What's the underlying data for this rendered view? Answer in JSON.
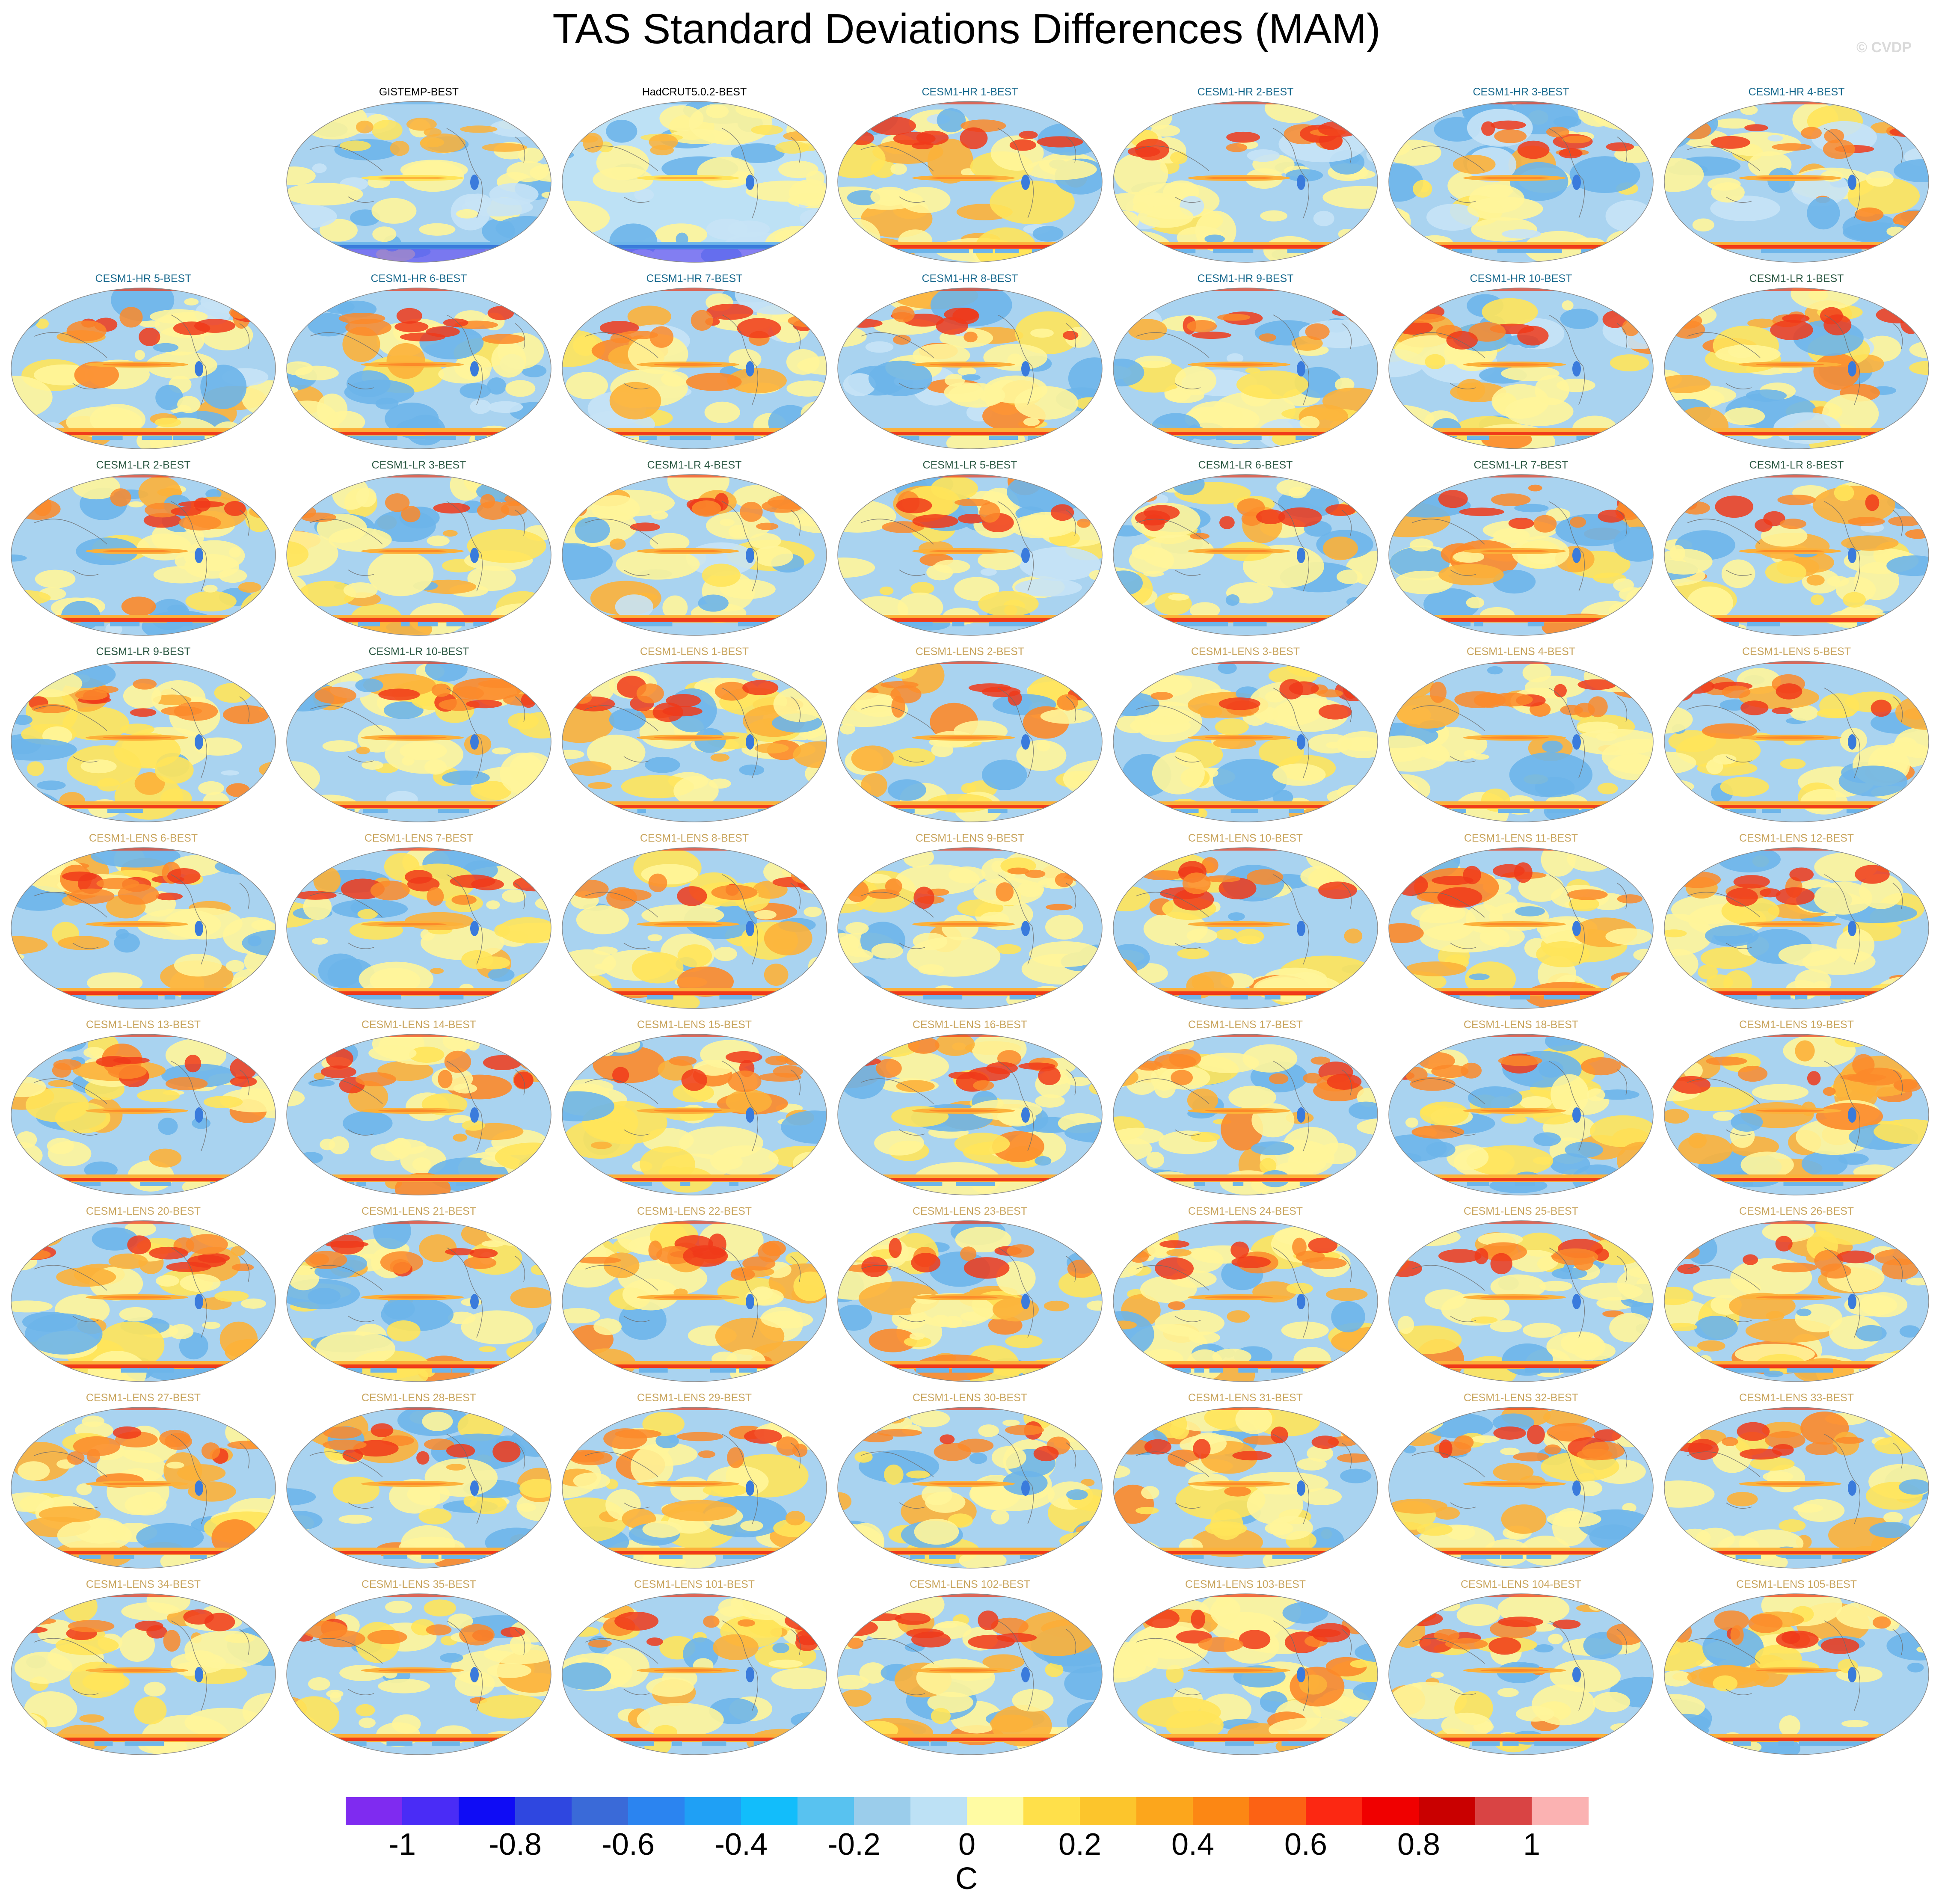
{
  "title": "TAS Standard Deviations Differences (MAM)",
  "copyright": "© CVDP",
  "label_colors": {
    "observations": "#000000",
    "CESM1-HR": "#1b6b8f",
    "CESM1-LR": "#2e5a45",
    "CESM1-LENS": "#c9a55e"
  },
  "panels": [
    {
      "label": "GISTEMP-BEST",
      "group": "observations"
    },
    {
      "label": "HadCRUT5.0.2-BEST",
      "group": "observations"
    },
    {
      "label": "CESM1-HR 1-BEST",
      "group": "CESM1-HR"
    },
    {
      "label": "CESM1-HR 2-BEST",
      "group": "CESM1-HR"
    },
    {
      "label": "CESM1-HR 3-BEST",
      "group": "CESM1-HR"
    },
    {
      "label": "CESM1-HR 4-BEST",
      "group": "CESM1-HR"
    },
    {
      "label": "CESM1-HR 5-BEST",
      "group": "CESM1-HR"
    },
    {
      "label": "CESM1-HR 6-BEST",
      "group": "CESM1-HR"
    },
    {
      "label": "CESM1-HR 7-BEST",
      "group": "CESM1-HR"
    },
    {
      "label": "CESM1-HR 8-BEST",
      "group": "CESM1-HR"
    },
    {
      "label": "CESM1-HR 9-BEST",
      "group": "CESM1-HR"
    },
    {
      "label": "CESM1-HR 10-BEST",
      "group": "CESM1-HR"
    },
    {
      "label": "CESM1-LR 1-BEST",
      "group": "CESM1-LR"
    },
    {
      "label": "CESM1-LR 2-BEST",
      "group": "CESM1-LR"
    },
    {
      "label": "CESM1-LR 3-BEST",
      "group": "CESM1-LR"
    },
    {
      "label": "CESM1-LR 4-BEST",
      "group": "CESM1-LR"
    },
    {
      "label": "CESM1-LR 5-BEST",
      "group": "CESM1-LR"
    },
    {
      "label": "CESM1-LR 6-BEST",
      "group": "CESM1-LR"
    },
    {
      "label": "CESM1-LR 7-BEST",
      "group": "CESM1-LR"
    },
    {
      "label": "CESM1-LR 8-BEST",
      "group": "CESM1-LR"
    },
    {
      "label": "CESM1-LR 9-BEST",
      "group": "CESM1-LR"
    },
    {
      "label": "CESM1-LR 10-BEST",
      "group": "CESM1-LR"
    },
    {
      "label": "CESM1-LENS 1-BEST",
      "group": "CESM1-LENS"
    },
    {
      "label": "CESM1-LENS 2-BEST",
      "group": "CESM1-LENS"
    },
    {
      "label": "CESM1-LENS 3-BEST",
      "group": "CESM1-LENS"
    },
    {
      "label": "CESM1-LENS 4-BEST",
      "group": "CESM1-LENS"
    },
    {
      "label": "CESM1-LENS 5-BEST",
      "group": "CESM1-LENS"
    },
    {
      "label": "CESM1-LENS 6-BEST",
      "group": "CESM1-LENS"
    },
    {
      "label": "CESM1-LENS 7-BEST",
      "group": "CESM1-LENS"
    },
    {
      "label": "CESM1-LENS 8-BEST",
      "group": "CESM1-LENS"
    },
    {
      "label": "CESM1-LENS 9-BEST",
      "group": "CESM1-LENS"
    },
    {
      "label": "CESM1-LENS 10-BEST",
      "group": "CESM1-LENS"
    },
    {
      "label": "CESM1-LENS 11-BEST",
      "group": "CESM1-LENS"
    },
    {
      "label": "CESM1-LENS 12-BEST",
      "group": "CESM1-LENS"
    },
    {
      "label": "CESM1-LENS 13-BEST",
      "group": "CESM1-LENS"
    },
    {
      "label": "CESM1-LENS 14-BEST",
      "group": "CESM1-LENS"
    },
    {
      "label": "CESM1-LENS 15-BEST",
      "group": "CESM1-LENS"
    },
    {
      "label": "CESM1-LENS 16-BEST",
      "group": "CESM1-LENS"
    },
    {
      "label": "CESM1-LENS 17-BEST",
      "group": "CESM1-LENS"
    },
    {
      "label": "CESM1-LENS 18-BEST",
      "group": "CESM1-LENS"
    },
    {
      "label": "CESM1-LENS 19-BEST",
      "group": "CESM1-LENS"
    },
    {
      "label": "CESM1-LENS 20-BEST",
      "group": "CESM1-LENS"
    },
    {
      "label": "CESM1-LENS 21-BEST",
      "group": "CESM1-LENS"
    },
    {
      "label": "CESM1-LENS 22-BEST",
      "group": "CESM1-LENS"
    },
    {
      "label": "CESM1-LENS 23-BEST",
      "group": "CESM1-LENS"
    },
    {
      "label": "CESM1-LENS 24-BEST",
      "group": "CESM1-LENS"
    },
    {
      "label": "CESM1-LENS 25-BEST",
      "group": "CESM1-LENS"
    },
    {
      "label": "CESM1-LENS 26-BEST",
      "group": "CESM1-LENS"
    },
    {
      "label": "CESM1-LENS 27-BEST",
      "group": "CESM1-LENS"
    },
    {
      "label": "CESM1-LENS 28-BEST",
      "group": "CESM1-LENS"
    },
    {
      "label": "CESM1-LENS 29-BEST",
      "group": "CESM1-LENS"
    },
    {
      "label": "CESM1-LENS 30-BEST",
      "group": "CESM1-LENS"
    },
    {
      "label": "CESM1-LENS 31-BEST",
      "group": "CESM1-LENS"
    },
    {
      "label": "CESM1-LENS 32-BEST",
      "group": "CESM1-LENS"
    },
    {
      "label": "CESM1-LENS 33-BEST",
      "group": "CESM1-LENS"
    },
    {
      "label": "CESM1-LENS 34-BEST",
      "group": "CESM1-LENS"
    },
    {
      "label": "CESM1-LENS 35-BEST",
      "group": "CESM1-LENS"
    },
    {
      "label": "CESM1-LENS 101-BEST",
      "group": "CESM1-LENS"
    },
    {
      "label": "CESM1-LENS 102-BEST",
      "group": "CESM1-LENS"
    },
    {
      "label": "CESM1-LENS 103-BEST",
      "group": "CESM1-LENS"
    },
    {
      "label": "CESM1-LENS 104-BEST",
      "group": "CESM1-LENS"
    },
    {
      "label": "CESM1-LENS 105-BEST",
      "group": "CESM1-LENS"
    }
  ],
  "colorbar": {
    "colors": [
      "#7f2bf0",
      "#4a2cf6",
      "#0f0cf5",
      "#2f47e0",
      "#3a6ad8",
      "#2b84f0",
      "#1fa0f5",
      "#12bdfb",
      "#58c2f0",
      "#9bcdeb",
      "#bde1f5",
      "#fffba3",
      "#ffe04a",
      "#fcc52c",
      "#fca61c",
      "#fc8714",
      "#fc6214",
      "#fc2812",
      "#f00000",
      "#c90000",
      "#d94444",
      "#fbb2b2"
    ],
    "ticks": [
      "-1",
      "-0.8",
      "-0.6",
      "-0.4",
      "-0.2",
      "0",
      "0.2",
      "0.4",
      "0.6",
      "0.8",
      "1"
    ],
    "unit": "C"
  }
}
